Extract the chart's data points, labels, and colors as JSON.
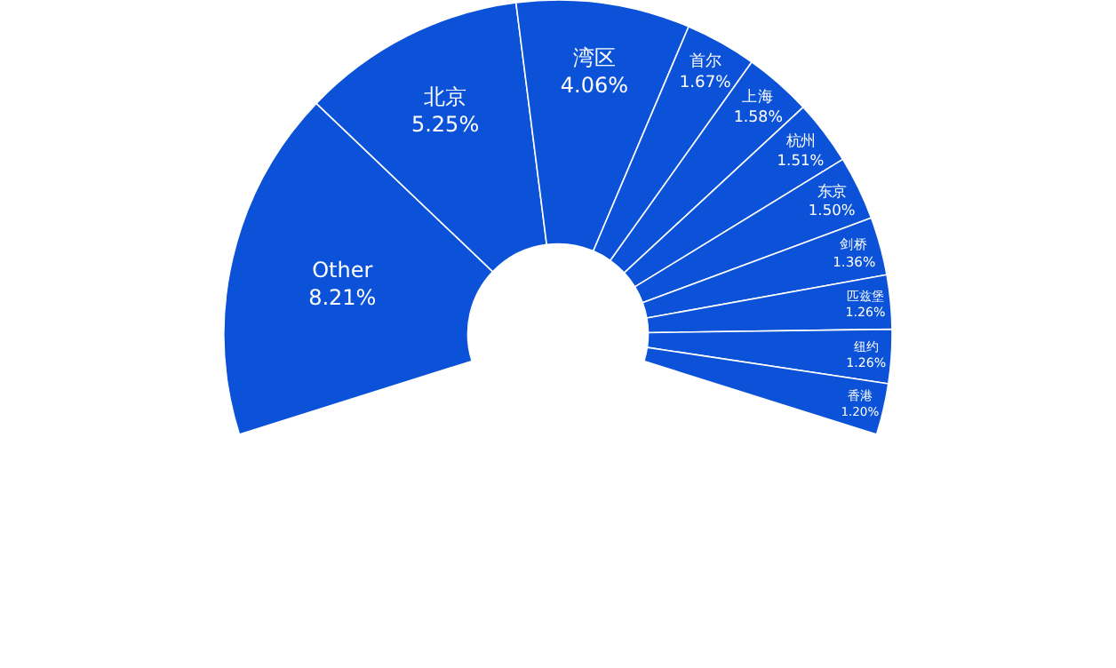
{
  "chart_data": {
    "type": "donut",
    "categories": [
      "Other",
      "北京",
      "湾区",
      "首尔",
      "上海",
      "杭州",
      "东京",
      "剑桥",
      "匹兹堡",
      "纽约",
      "香港"
    ],
    "values": [
      8.21,
      5.25,
      4.06,
      1.67,
      1.58,
      1.51,
      1.5,
      1.36,
      1.26,
      1.26,
      1.2
    ],
    "value_labels": [
      "8.21%",
      "5.25%",
      "4.06%",
      "1.67%",
      "1.58%",
      "1.51%",
      "1.50%",
      "1.36%",
      "1.26%",
      "1.26%",
      "1.20%"
    ],
    "color": "#0b52d8"
  }
}
